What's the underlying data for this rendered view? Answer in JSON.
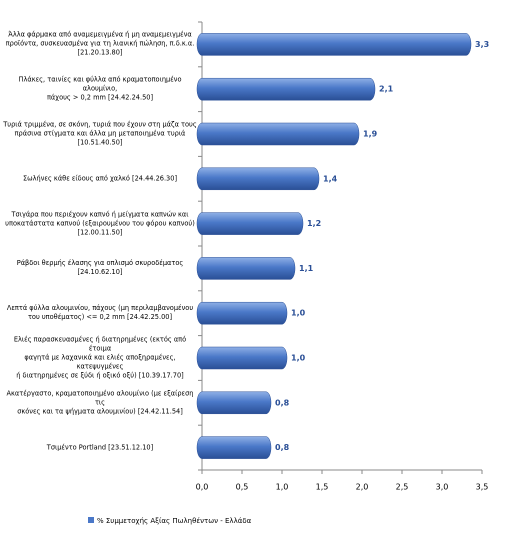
{
  "chart_data": {
    "type": "bar",
    "orientation": "horizontal",
    "categories": [
      "Άλλα φάρμακα από αναμεμειγμένα ή μη αναμεμειγμένα\nπροϊόντα, συσκευασμένα για τη λιανική πώληση, π.δ.κ.α.\n[21.20.13.80]",
      "Πλάκες, ταινίες και φύλλα από κραματοποιημένο αλουμίνιο,\nπάχους > 0,2 mm [24.42.24.50]",
      "Τυριά τριμμένα, σε σκόνη, τυριά που έχουν στη μάζα τους\nπράσινα στίγματα και άλλα μη μεταποιημένα τυριά\n[10.51.40.50]",
      "Σωλήνες κάθε είδους από χαλκό [24.44.26.30]",
      "Τσιγάρα που περιέχουν καπνό ή μείγματα καπνών και\nυποκατάστατα καπνού (εξαιρουμένου του φόρου καπνού)\n[12.00.11.50]",
      "Ράβδοι θερμής έλασης για οπλισμό σκυροδέματος\n[24.10.62.10]",
      "Λεπτά φύλλα αλουμινίου, πάχους (μη περιλαμβανομένου\nτου υποθέματος) <= 0,2 mm [24.42.25.00]",
      "Ελιές παρασκευασμένες ή διατηρημένες (εκτός από έτοιμα\nφαγητά με λαχανικά και ελιές αποξηραμένες, κατεψυγμένες\nή διατηρημένες σε ξύδι ή οξικό οξύ) [10.39.17.70]",
      "Ακατέργαστο, κραματοποιημένο αλουμίνιο (με εξαίρεση τις\nσκόνες και τα ψήγματα αλουμινίου) [24.42.11.54]",
      "Τσιμέντο Portland [23.51.12.10]"
    ],
    "series": [
      {
        "name": "% Συμμετοχής Αξίας Πωληθέντων - Ελλάδα",
        "color": "#4a78c8",
        "values": [
          3.3,
          2.1,
          1.9,
          1.4,
          1.2,
          1.1,
          1.0,
          1.0,
          0.8,
          0.8
        ],
        "value_labels": [
          "3,3",
          "2,1",
          "1,9",
          "1,4",
          "1,2",
          "1,1",
          "1,0",
          "1,0",
          "0,8",
          "0,8"
        ]
      }
    ],
    "xlim": [
      0,
      3.5
    ],
    "xticks": [
      {
        "value": 0,
        "label": "0,0"
      },
      {
        "value": 0.5,
        "label": "0,5"
      },
      {
        "value": 1,
        "label": "1,0"
      },
      {
        "value": 1.5,
        "label": "1,5"
      },
      {
        "value": 2,
        "label": "2,0"
      },
      {
        "value": 2.5,
        "label": "2,5"
      },
      {
        "value": 3,
        "label": "3,0"
      },
      {
        "value": 3.5,
        "label": "3,5"
      }
    ],
    "grid": false
  }
}
